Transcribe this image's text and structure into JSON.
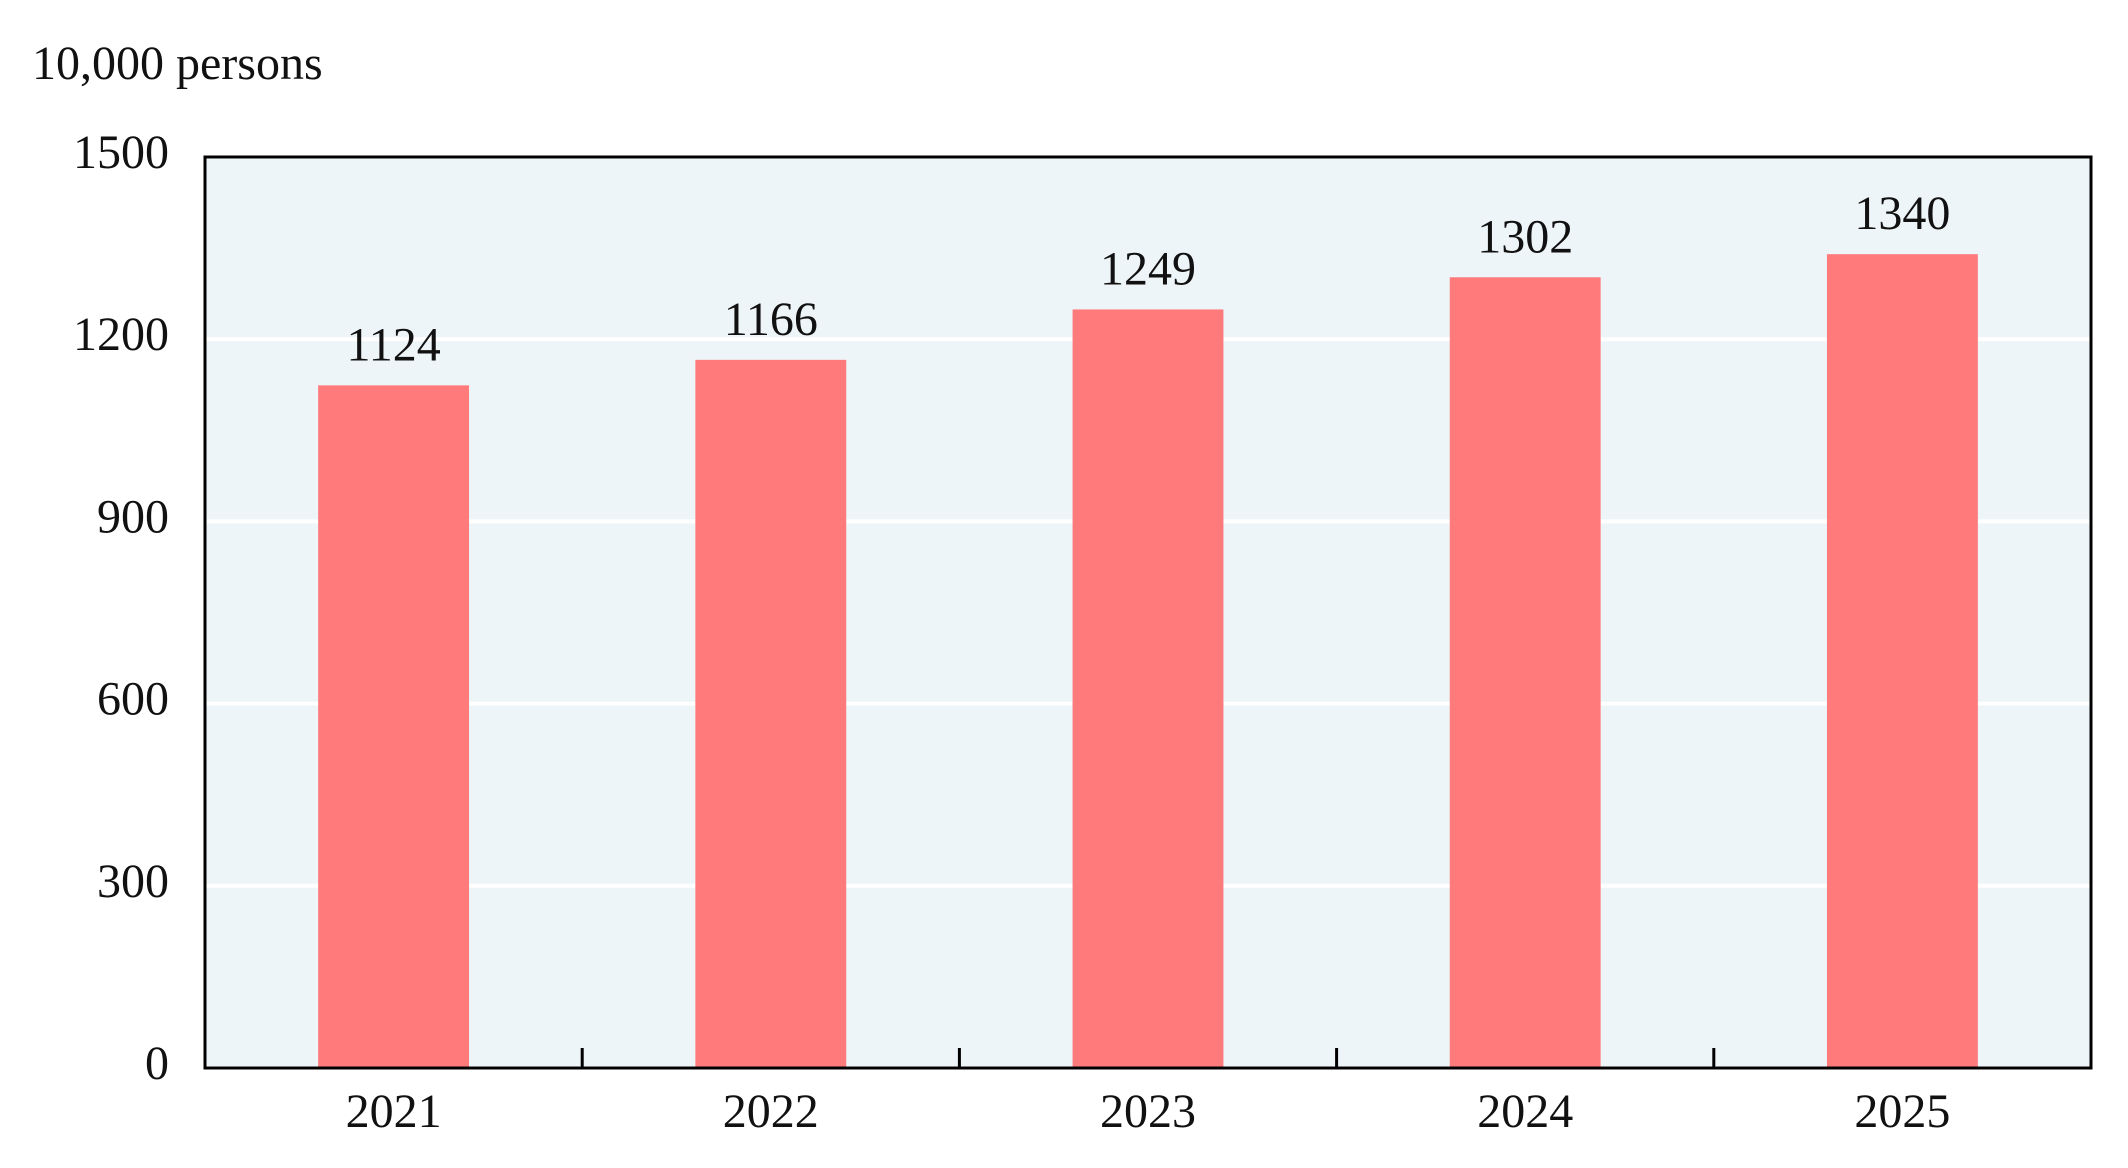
{
  "chart_data": {
    "type": "bar",
    "y_axis_label": "10,000 persons",
    "categories": [
      "2021",
      "2022",
      "2023",
      "2024",
      "2025"
    ],
    "values": [
      1124,
      1166,
      1249,
      1302,
      1340
    ],
    "color": "#ff7b7b",
    "ylim": [
      0,
      1500
    ],
    "yticks": [
      0,
      300,
      600,
      900,
      1200,
      1500
    ],
    "grid": true
  }
}
